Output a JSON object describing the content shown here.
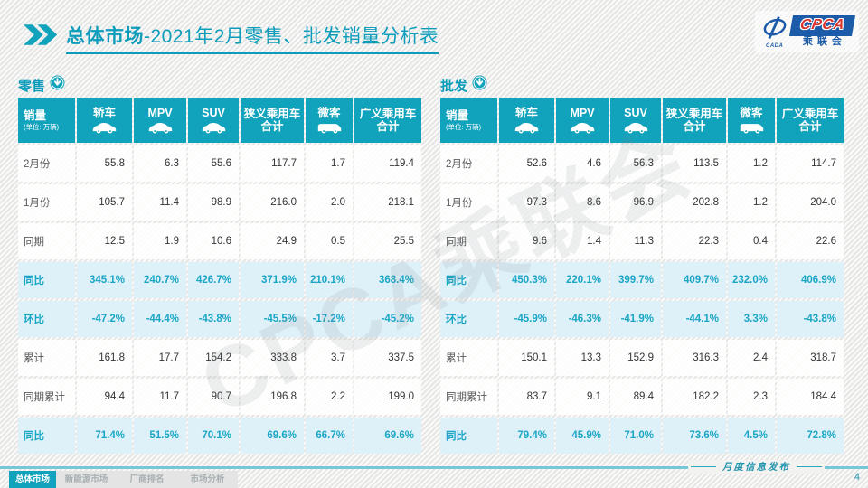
{
  "colors": {
    "accent": "#12a3bc",
    "title_teal": "#0d9dbb",
    "rate_text": "#1ba6c6",
    "rate_row_bg": "#def1f8",
    "logo_blue": "#1b5ba8",
    "logo_red": "#d5332b"
  },
  "title": {
    "emphasis": "总体市场",
    "rest": "-2021年2月零售、批发销量分析表"
  },
  "logo": {
    "cpca": "CPCA",
    "cn": "乘联会",
    "side": "CADA"
  },
  "watermark": "CPCA乘联会",
  "chart_data": [
    {
      "type": "table",
      "title": "零售",
      "unit_label": "销量",
      "unit_note": "(单位: 万辆)",
      "columns": [
        {
          "label": "轿车",
          "icon": "sedan-car-icon"
        },
        {
          "label": "MPV",
          "icon": "mpv-car-icon"
        },
        {
          "label": "SUV",
          "icon": "suv-car-icon"
        },
        {
          "label": "狭义乘用车\n合计",
          "icon": null
        },
        {
          "label": "微客",
          "icon": "microvan-icon"
        },
        {
          "label": "广义乘用车\n合计",
          "icon": null
        }
      ],
      "rows": [
        {
          "label": "2月份",
          "style": "normal",
          "values": [
            "55.8",
            "6.3",
            "55.6",
            "117.7",
            "1.7",
            "119.4"
          ]
        },
        {
          "label": "1月份",
          "style": "normal",
          "values": [
            "105.7",
            "11.4",
            "98.9",
            "216.0",
            "2.0",
            "218.1"
          ]
        },
        {
          "label": "同期",
          "style": "normal",
          "values": [
            "12.5",
            "1.9",
            "10.6",
            "24.9",
            "0.5",
            "25.5"
          ]
        },
        {
          "label": "同比",
          "style": "rate",
          "values": [
            "345.1%",
            "240.7%",
            "426.7%",
            "371.9%",
            "210.1%",
            "368.4%"
          ]
        },
        {
          "label": "环比",
          "style": "rate",
          "values": [
            "-47.2%",
            "-44.4%",
            "-43.8%",
            "-45.5%",
            "-17.2%",
            "-45.2%"
          ]
        },
        {
          "label": "累计",
          "style": "normal",
          "values": [
            "161.8",
            "17.7",
            "154.2",
            "333.8",
            "3.7",
            "337.5"
          ]
        },
        {
          "label": "同期累计",
          "style": "normal",
          "values": [
            "94.4",
            "11.7",
            "90.7",
            "196.8",
            "2.2",
            "199.0"
          ]
        },
        {
          "label": "同比",
          "style": "rate",
          "values": [
            "71.4%",
            "51.5%",
            "70.1%",
            "69.6%",
            "66.7%",
            "69.6%"
          ]
        }
      ]
    },
    {
      "type": "table",
      "title": "批发",
      "unit_label": "销量",
      "unit_note": "(单位: 万辆)",
      "columns": [
        {
          "label": "轿车",
          "icon": "sedan-car-icon"
        },
        {
          "label": "MPV",
          "icon": "mpv-car-icon"
        },
        {
          "label": "SUV",
          "icon": "suv-car-icon"
        },
        {
          "label": "狭义乘用车\n合计",
          "icon": null
        },
        {
          "label": "微客",
          "icon": "microvan-icon"
        },
        {
          "label": "广义乘用车\n合计",
          "icon": null
        }
      ],
      "rows": [
        {
          "label": "2月份",
          "style": "normal",
          "values": [
            "52.6",
            "4.6",
            "56.3",
            "113.5",
            "1.2",
            "114.7"
          ]
        },
        {
          "label": "1月份",
          "style": "normal",
          "values": [
            "97.3",
            "8.6",
            "96.9",
            "202.8",
            "1.2",
            "204.0"
          ]
        },
        {
          "label": "同期",
          "style": "normal",
          "values": [
            "9.6",
            "1.4",
            "11.3",
            "22.3",
            "0.4",
            "22.6"
          ]
        },
        {
          "label": "同比",
          "style": "rate",
          "values": [
            "450.3%",
            "220.1%",
            "399.7%",
            "409.7%",
            "232.0%",
            "406.9%"
          ]
        },
        {
          "label": "环比",
          "style": "rate",
          "values": [
            "-45.9%",
            "-46.3%",
            "-41.9%",
            "-44.1%",
            "3.3%",
            "-43.8%"
          ]
        },
        {
          "label": "累计",
          "style": "normal",
          "values": [
            "150.1",
            "13.3",
            "152.9",
            "316.3",
            "2.4",
            "318.7"
          ]
        },
        {
          "label": "同期累计",
          "style": "normal",
          "values": [
            "83.7",
            "9.1",
            "89.4",
            "182.2",
            "2.3",
            "184.4"
          ]
        },
        {
          "label": "同比",
          "style": "rate",
          "values": [
            "79.4%",
            "45.9%",
            "71.0%",
            "73.6%",
            "4.5%",
            "72.8%"
          ]
        }
      ]
    }
  ],
  "footer": {
    "tabs": [
      {
        "label": "总体市场",
        "active": true
      },
      {
        "label": "新能源市场",
        "active": false
      },
      {
        "label": "厂商排名",
        "active": false
      },
      {
        "label": "市场分析",
        "active": false
      }
    ],
    "note": "月度信息发布",
    "page": "4"
  }
}
